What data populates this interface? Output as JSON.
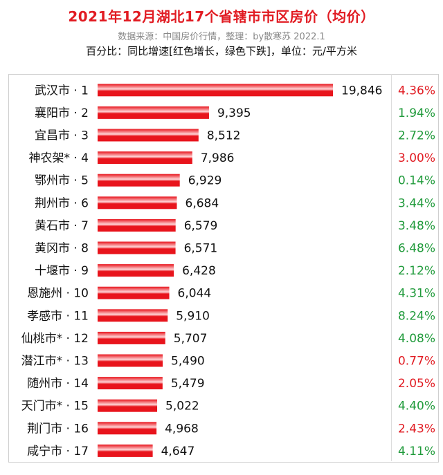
{
  "header": {
    "title": "2021年12月湖北17个省辖市市区房价（均价）",
    "source": "数据来源：中国房价行情，整理：by散寒苏 2022.1",
    "note": "百分比：同比增速[红色增长，绿色下跌]，单位：元/平方米"
  },
  "colors": {
    "title": "#e11b22",
    "bar_main": "#e8141c",
    "bar_highlight": "#ffd4d6",
    "pct_red": "#e11b22",
    "pct_green": "#1f9a3a"
  },
  "chart_data": {
    "type": "bar",
    "orientation": "horizontal",
    "categories": [
      "武汉市 · 1",
      "襄阳市 · 2",
      "宜昌市 · 3",
      "神农架* · 4",
      "鄂州市 · 5",
      "荆州市 · 6",
      "黄石市 · 7",
      "黄冈市 · 8",
      "十堰市 · 9",
      "恩施州 · 10",
      "孝感市 · 11",
      "仙桃市* · 12",
      "潜江市* · 13",
      "随州市 · 14",
      "天门市* · 15",
      "荆门市 · 16",
      "咸宁市 · 17"
    ],
    "values": [
      19846,
      9395,
      8512,
      7986,
      6929,
      6684,
      6579,
      6571,
      6428,
      6044,
      5910,
      5707,
      5490,
      5479,
      5022,
      4968,
      4647
    ],
    "value_labels": [
      "19,846",
      "9,395",
      "8,512",
      "7,986",
      "6,929",
      "6,684",
      "6,579",
      "6,571",
      "6,428",
      "6,044",
      "5,910",
      "5,707",
      "5,490",
      "5,479",
      "5,022",
      "4,968",
      "4,647"
    ],
    "pct_labels": [
      "4.36%",
      "1.94%",
      "2.72%",
      "3.00%",
      "0.14%",
      "3.44%",
      "3.48%",
      "6.48%",
      "2.12%",
      "4.31%",
      "8.24%",
      "4.08%",
      "0.77%",
      "2.05%",
      "4.40%",
      "2.43%",
      "4.11%"
    ],
    "pct_colors": [
      "red",
      "green",
      "green",
      "red",
      "green",
      "green",
      "green",
      "green",
      "green",
      "green",
      "green",
      "green",
      "red",
      "red",
      "green",
      "red",
      "green"
    ],
    "xlim": [
      0,
      19846
    ],
    "grid": false
  }
}
